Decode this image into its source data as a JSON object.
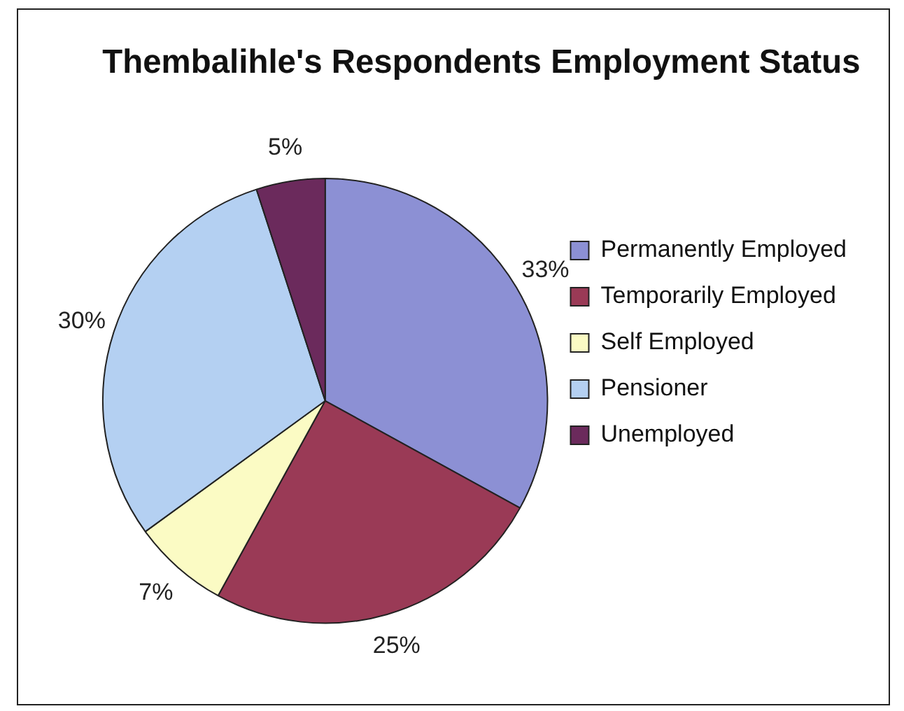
{
  "chart_data": {
    "type": "pie",
    "title": "Thembalihle's Respondents Employment Status",
    "categories": [
      "Permanently Employed",
      "Temporarily Employed",
      "Self Employed",
      "Pensioner",
      "Unemployed"
    ],
    "values": [
      33,
      25,
      7,
      30,
      5
    ],
    "value_labels": [
      "33%",
      "25%",
      "7%",
      "30%",
      "5%"
    ],
    "colors": [
      "#8c90d4",
      "#9a3a56",
      "#fbfbc4",
      "#b4d0f2",
      "#6b2a5c"
    ],
    "legend": "right"
  }
}
